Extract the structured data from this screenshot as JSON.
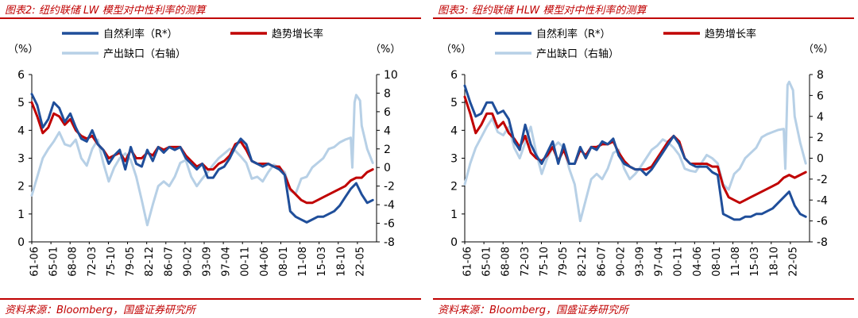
{
  "source_note": "资料来源：Bloomberg，国盛证券研究所",
  "colors": {
    "natural_rate": "#1f4e9a",
    "trend_growth": "#c00000",
    "output_gap": "#b7d0e6",
    "title": "#c00000"
  },
  "chart_data": [
    {
      "type": "line",
      "title": "图表2: 纽约联储 LW 模型对中性利率的测算",
      "left_unit": "（%）",
      "right_unit": "（%）",
      "xlim": [
        1961.5,
        2024.2
      ],
      "ylim_left": [
        0,
        6
      ],
      "ylim_right": [
        -8,
        10
      ],
      "yticks_left": [
        "0",
        "1",
        "2",
        "3",
        "4",
        "5",
        "6"
      ],
      "yticks_right": [
        "-8",
        "-6",
        "-4",
        "-2",
        "0",
        "2",
        "4",
        "6",
        "8",
        "10"
      ],
      "x_tick_labels": [
        "61-06",
        "65-01",
        "68-08",
        "72-03",
        "75-10",
        "79-05",
        "82-12",
        "86-07",
        "90-02",
        "93-09",
        "97-04",
        "00-11",
        "04-06",
        "08-01",
        "11-08",
        "15-03",
        "18-10",
        "22-05"
      ],
      "legend": [
        "自然利率（R*）",
        "趋势增长率",
        "产出缺口（右轴）"
      ],
      "series": [
        {
          "name": "自然利率（R*）",
          "axis": "left",
          "color": "#1f4e9a",
          "x": [
            1961.5,
            1962.5,
            1963.5,
            1964.5,
            1965.5,
            1966.5,
            1967.5,
            1968.5,
            1969.5,
            1970.5,
            1971.5,
            1972.5,
            1973.5,
            1974.5,
            1975.5,
            1976.5,
            1977.5,
            1978.5,
            1979.5,
            1980.5,
            1981.5,
            1982.5,
            1983.5,
            1984.5,
            1985.5,
            1986.5,
            1987.5,
            1988.5,
            1989.5,
            1990.5,
            1991.5,
            1992.5,
            1993.5,
            1994.5,
            1995.5,
            1996.5,
            1997.5,
            1998.5,
            1999.5,
            2000.5,
            2001.5,
            2002.5,
            2003.5,
            2004.5,
            2005.5,
            2006.5,
            2007.5,
            2008.5,
            2009.5,
            2010.5,
            2011.5,
            2012.5,
            2013.5,
            2014.5,
            2015.5,
            2016.5,
            2017.5,
            2018.5,
            2019.5,
            2020.5,
            2021.5,
            2022.5,
            2023.5
          ],
          "y": [
            5.3,
            4.9,
            4.1,
            4.4,
            5.0,
            4.8,
            4.3,
            4.6,
            4.1,
            3.7,
            3.6,
            4.0,
            3.5,
            3.3,
            2.8,
            3.1,
            3.3,
            2.6,
            3.4,
            2.8,
            2.7,
            3.3,
            2.9,
            3.4,
            3.2,
            3.4,
            3.3,
            3.4,
            3.0,
            2.8,
            2.6,
            2.8,
            2.3,
            2.3,
            2.6,
            2.7,
            3.0,
            3.4,
            3.7,
            3.5,
            2.9,
            2.8,
            2.7,
            2.8,
            2.7,
            2.6,
            2.4,
            1.1,
            0.9,
            0.8,
            0.7,
            0.8,
            0.9,
            0.9,
            1.0,
            1.1,
            1.3,
            1.6,
            1.9,
            2.1,
            1.7,
            1.4,
            1.5
          ]
        },
        {
          "name": "趋势增长率",
          "axis": "left",
          "color": "#c00000",
          "x": [
            1961.5,
            1962.5,
            1963.5,
            1964.5,
            1965.5,
            1966.5,
            1967.5,
            1968.5,
            1969.5,
            1970.5,
            1971.5,
            1972.5,
            1973.5,
            1974.5,
            1975.5,
            1976.5,
            1977.5,
            1978.5,
            1979.5,
            1980.5,
            1981.5,
            1982.5,
            1983.5,
            1984.5,
            1985.5,
            1986.5,
            1987.5,
            1988.5,
            1989.5,
            1990.5,
            1991.5,
            1992.5,
            1993.5,
            1994.5,
            1995.5,
            1996.5,
            1997.5,
            1998.5,
            1999.5,
            2000.5,
            2001.5,
            2002.5,
            2003.5,
            2004.5,
            2005.5,
            2006.5,
            2007.5,
            2008.5,
            2009.5,
            2010.5,
            2011.5,
            2012.5,
            2013.5,
            2014.5,
            2015.5,
            2016.5,
            2017.5,
            2018.5,
            2019.5,
            2020.5,
            2021.5,
            2022.5,
            2023.5
          ],
          "y": [
            5.0,
            4.5,
            3.9,
            4.1,
            4.6,
            4.5,
            4.2,
            4.4,
            4.0,
            3.8,
            3.7,
            3.8,
            3.5,
            3.3,
            3.0,
            3.1,
            3.2,
            2.9,
            3.3,
            3.0,
            3.0,
            3.2,
            3.1,
            3.4,
            3.3,
            3.4,
            3.4,
            3.4,
            3.1,
            2.9,
            2.7,
            2.8,
            2.6,
            2.6,
            2.8,
            2.9,
            3.1,
            3.5,
            3.6,
            3.3,
            2.9,
            2.8,
            2.8,
            2.8,
            2.7,
            2.7,
            2.4,
            1.9,
            1.7,
            1.5,
            1.4,
            1.4,
            1.5,
            1.6,
            1.7,
            1.8,
            1.9,
            2.0,
            2.2,
            2.3,
            2.3,
            2.5,
            2.6
          ]
        },
        {
          "name": "产出缺口（右轴）",
          "axis": "right",
          "color": "#b7d0e6",
          "x": [
            1961.5,
            1962.5,
            1963.5,
            1964.5,
            1965.5,
            1966.5,
            1967.5,
            1968.5,
            1969.5,
            1970.5,
            1971.5,
            1972.5,
            1973.5,
            1974.5,
            1975.5,
            1976.5,
            1977.5,
            1978.5,
            1979.5,
            1980.5,
            1981.5,
            1982.5,
            1983.5,
            1984.5,
            1985.5,
            1986.5,
            1987.5,
            1988.5,
            1989.5,
            1990.5,
            1991.5,
            1992.5,
            1993.5,
            1994.5,
            1995.5,
            1996.5,
            1997.5,
            1998.5,
            1999.5,
            2000.5,
            2001.5,
            2002.5,
            2003.5,
            2004.5,
            2005.5,
            2006.5,
            2007.5,
            2008.5,
            2009.5,
            2010.5,
            2011.5,
            2012.5,
            2013.5,
            2014.5,
            2015.5,
            2016.5,
            2017.5,
            2018.5,
            2019.5,
            2019.8,
            2020.2,
            2020.5,
            2021.2,
            2021.5,
            2022.5,
            2023.5
          ],
          "y": [
            -3.0,
            -1.0,
            1.0,
            2.0,
            2.8,
            3.8,
            2.5,
            2.3,
            3.0,
            1.0,
            0.2,
            2.0,
            3.0,
            0.5,
            -1.5,
            0.0,
            1.0,
            1.5,
            0.8,
            -1.0,
            -3.5,
            -6.2,
            -4.0,
            -2.0,
            -1.5,
            -2.0,
            -1.0,
            0.5,
            0.8,
            -1.0,
            -2.0,
            -1.2,
            -0.5,
            0.3,
            1.0,
            1.5,
            2.0,
            1.8,
            1.2,
            0.5,
            -1.2,
            -1.0,
            -1.5,
            -0.5,
            0.3,
            0.0,
            -0.5,
            -2.5,
            -2.8,
            -1.2,
            -1.0,
            0.0,
            0.5,
            1.0,
            2.0,
            2.2,
            2.7,
            3.0,
            3.2,
            0.0,
            7.0,
            7.8,
            7.2,
            4.5,
            2.0,
            0.5
          ]
        }
      ]
    },
    {
      "type": "line",
      "title": "图表3: 纽约联储 HLW 模型对中性利率的测算",
      "left_unit": "（%）",
      "right_unit": "（%）",
      "xlim": [
        1961.5,
        2024.2
      ],
      "ylim_left": [
        0,
        6
      ],
      "ylim_right": [
        -8,
        8
      ],
      "yticks_left": [
        "0",
        "1",
        "2",
        "3",
        "4",
        "5",
        "6"
      ],
      "yticks_right": [
        "-8",
        "-6",
        "-4",
        "-2",
        "0",
        "2",
        "4",
        "6",
        "8"
      ],
      "x_tick_labels": [
        "61-06",
        "65-01",
        "68-08",
        "72-03",
        "75-10",
        "79-05",
        "82-12",
        "86-07",
        "90-02",
        "93-09",
        "97-04",
        "00-11",
        "04-06",
        "08-01",
        "11-08",
        "15-03",
        "18-10",
        "22-05"
      ],
      "legend": [
        "自然利率（R*）",
        "趋势增长率",
        "产出缺口（右轴）"
      ],
      "series": [
        {
          "name": "自然利率（R*）",
          "axis": "left",
          "color": "#1f4e9a",
          "x": [
            1961.5,
            1962.5,
            1963.5,
            1964.5,
            1965.5,
            1966.5,
            1967.5,
            1968.5,
            1969.5,
            1970.5,
            1971.5,
            1972.5,
            1973.5,
            1974.5,
            1975.5,
            1976.5,
            1977.5,
            1978.5,
            1979.5,
            1980.5,
            1981.5,
            1982.5,
            1983.5,
            1984.5,
            1985.5,
            1986.5,
            1987.5,
            1988.5,
            1989.5,
            1990.5,
            1991.5,
            1992.5,
            1993.5,
            1994.5,
            1995.5,
            1996.5,
            1997.5,
            1998.5,
            1999.5,
            2000.5,
            2001.5,
            2002.5,
            2003.5,
            2004.5,
            2005.5,
            2006.5,
            2007.5,
            2008.5,
            2009.5,
            2010.5,
            2011.5,
            2012.5,
            2013.5,
            2014.5,
            2015.5,
            2016.5,
            2017.5,
            2018.5,
            2019.5,
            2020.5,
            2021.5,
            2022.5,
            2023.5
          ],
          "y": [
            5.6,
            5.0,
            4.5,
            4.6,
            5.0,
            5.0,
            4.6,
            4.7,
            4.4,
            3.6,
            3.3,
            4.2,
            3.5,
            3.1,
            2.8,
            3.2,
            3.6,
            2.8,
            3.5,
            2.8,
            2.8,
            3.4,
            3.0,
            3.4,
            3.3,
            3.6,
            3.5,
            3.7,
            3.1,
            2.8,
            2.7,
            2.6,
            2.6,
            2.4,
            2.6,
            2.9,
            3.2,
            3.5,
            3.8,
            3.5,
            3.0,
            2.8,
            2.7,
            2.7,
            2.7,
            2.5,
            2.4,
            1.0,
            0.9,
            0.8,
            0.8,
            0.9,
            0.9,
            1.0,
            1.0,
            1.1,
            1.2,
            1.4,
            1.6,
            1.8,
            1.3,
            1.0,
            0.9
          ]
        },
        {
          "name": "趋势增长率",
          "axis": "left",
          "color": "#c00000",
          "x": [
            1961.5,
            1962.5,
            1963.5,
            1964.5,
            1965.5,
            1966.5,
            1967.5,
            1968.5,
            1969.5,
            1970.5,
            1971.5,
            1972.5,
            1973.5,
            1974.5,
            1975.5,
            1976.5,
            1977.5,
            1978.5,
            1979.5,
            1980.5,
            1981.5,
            1982.5,
            1983.5,
            1984.5,
            1985.5,
            1986.5,
            1987.5,
            1988.5,
            1989.5,
            1990.5,
            1991.5,
            1992.5,
            1993.5,
            1994.5,
            1995.5,
            1996.5,
            1997.5,
            1998.5,
            1999.5,
            2000.5,
            2001.5,
            2002.5,
            2003.5,
            2004.5,
            2005.5,
            2006.5,
            2007.5,
            2008.5,
            2009.5,
            2010.5,
            2011.5,
            2012.5,
            2013.5,
            2014.5,
            2015.5,
            2016.5,
            2017.5,
            2018.5,
            2019.5,
            2020.5,
            2021.5,
            2022.5,
            2023.5
          ],
          "y": [
            5.2,
            4.6,
            3.9,
            4.2,
            4.6,
            4.6,
            4.1,
            4.3,
            3.9,
            3.7,
            3.4,
            3.8,
            3.2,
            3.0,
            2.9,
            3.1,
            3.4,
            2.9,
            3.3,
            2.8,
            2.8,
            3.3,
            3.1,
            3.4,
            3.4,
            3.5,
            3.5,
            3.6,
            3.2,
            2.9,
            2.7,
            2.6,
            2.6,
            2.6,
            2.7,
            3.0,
            3.3,
            3.6,
            3.8,
            3.6,
            3.0,
            2.8,
            2.8,
            2.8,
            2.8,
            2.7,
            2.7,
            2.0,
            1.6,
            1.5,
            1.4,
            1.5,
            1.6,
            1.7,
            1.8,
            1.9,
            2.0,
            2.1,
            2.3,
            2.4,
            2.3,
            2.4,
            2.5
          ]
        },
        {
          "name": "产出缺口（右轴）",
          "axis": "right",
          "color": "#b7d0e6",
          "x": [
            1961.5,
            1962.5,
            1963.5,
            1964.5,
            1965.5,
            1966.5,
            1967.5,
            1968.5,
            1969.5,
            1970.5,
            1971.5,
            1972.5,
            1973.5,
            1974.5,
            1975.5,
            1976.5,
            1977.5,
            1978.5,
            1979.5,
            1980.5,
            1981.5,
            1982.5,
            1983.5,
            1984.5,
            1985.5,
            1986.5,
            1987.5,
            1988.5,
            1989.5,
            1990.5,
            1991.5,
            1992.5,
            1993.5,
            1994.5,
            1995.5,
            1996.5,
            1997.5,
            1998.5,
            1999.5,
            2000.5,
            2001.5,
            2002.5,
            2003.5,
            2004.5,
            2005.5,
            2006.5,
            2007.5,
            2008.5,
            2009.5,
            2010.5,
            2011.5,
            2012.5,
            2013.5,
            2014.5,
            2015.5,
            2016.5,
            2017.5,
            2018.5,
            2019.5,
            2019.8,
            2020.2,
            2020.5,
            2021.2,
            2021.5,
            2022.5,
            2023.5
          ],
          "y": [
            -2.5,
            -0.5,
            1.0,
            2.0,
            3.0,
            3.8,
            2.5,
            2.2,
            3.0,
            1.0,
            0.0,
            1.5,
            3.0,
            0.5,
            -1.5,
            0.0,
            1.0,
            1.5,
            1.0,
            -1.0,
            -2.5,
            -6.0,
            -4.0,
            -2.0,
            -1.5,
            -2.0,
            -1.0,
            0.5,
            0.8,
            -1.0,
            -2.0,
            -1.5,
            -0.8,
            0.0,
            0.8,
            1.2,
            1.8,
            1.5,
            1.0,
            0.3,
            -1.0,
            -1.2,
            -1.3,
            -0.5,
            0.3,
            0.0,
            -0.5,
            -2.5,
            -3.0,
            -1.5,
            -1.0,
            0.0,
            0.5,
            1.0,
            2.0,
            2.3,
            2.5,
            2.7,
            2.8,
            -1.0,
            7.0,
            7.3,
            6.5,
            4.0,
            1.5,
            -0.5
          ]
        }
      ]
    }
  ]
}
